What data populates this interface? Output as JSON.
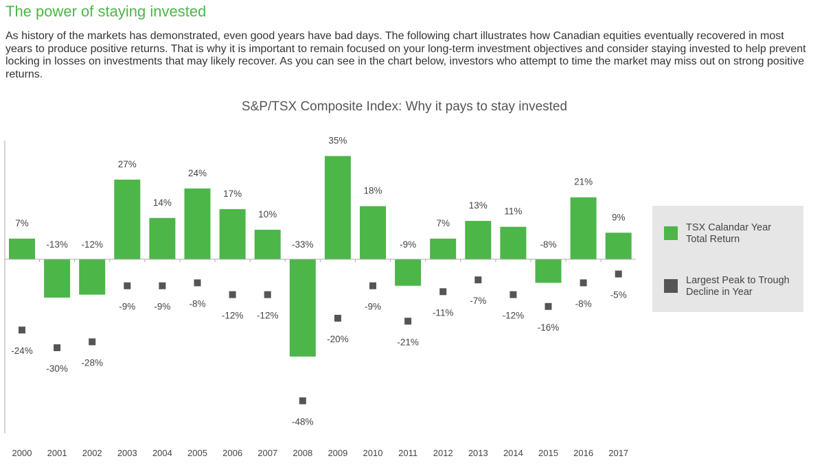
{
  "heading": "The power of staying invested",
  "intro": "As history of the markets has demonstrated, even good years have bad days. The following chart illustrates how Canadian equities eventually recovered in most years to produce positive returns. That is why it is important to remain focused on your long-term investment objectives and consider staying invested to help prevent locking in losses on investments that may likely recover. As you can see in the chart below, investors who attempt to time the market may miss out on strong positive returns.",
  "legend": {
    "items": [
      {
        "line1": "TSX Calandar Year",
        "line2": "Total Return"
      },
      {
        "line1": "Largest Peak to Trough",
        "line2": "Decline in Year"
      }
    ]
  },
  "colors": {
    "heading": "#4cb648",
    "bar": "#4cb648",
    "marker": "#555555",
    "legend_bg": "#e6e6e6",
    "axis": "#aaaaaa",
    "label": "#444444"
  },
  "chart_data": {
    "type": "bar",
    "title": "S&P/TSX Composite Index: Why it pays to stay invested",
    "categories": [
      "2000",
      "2001",
      "2002",
      "2003",
      "2004",
      "2005",
      "2006",
      "2007",
      "2008",
      "2009",
      "2010",
      "2011",
      "2012",
      "2013",
      "2014",
      "2015",
      "2016",
      "2017"
    ],
    "series": [
      {
        "name": "TSX Calandar Year Total Return",
        "kind": "bar",
        "values": [
          7,
          -13,
          -12,
          27,
          14,
          24,
          17,
          10,
          -33,
          35,
          18,
          -9,
          7,
          13,
          11,
          -8,
          21,
          9
        ],
        "labels": [
          "7%",
          "-13%",
          "-12%",
          "27%",
          "14%",
          "24%",
          "17%",
          "10%",
          "-33%",
          "35%",
          "18%",
          "-9%",
          "7%",
          "13%",
          "11%",
          "-8%",
          "21%",
          "9%"
        ]
      },
      {
        "name": "Largest Peak to Trough Decline in Year",
        "kind": "marker",
        "values": [
          -24,
          -30,
          -28,
          -9,
          -9,
          -8,
          -12,
          -12,
          -48,
          -20,
          -9,
          -21,
          -11,
          -7,
          -12,
          -16,
          -8,
          -5
        ],
        "labels": [
          "-24%",
          "-30%",
          "-28%",
          "-9%",
          "-9%",
          "-8%",
          "-12%",
          "-12%",
          "-48%",
          "-20%",
          "-9%",
          "-21%",
          "-11%",
          "-7%",
          "-12%",
          "-16%",
          "-8%",
          "-5%"
        ]
      }
    ],
    "ylim": [
      -60,
      40
    ],
    "grid": false,
    "legend_position": "right"
  }
}
